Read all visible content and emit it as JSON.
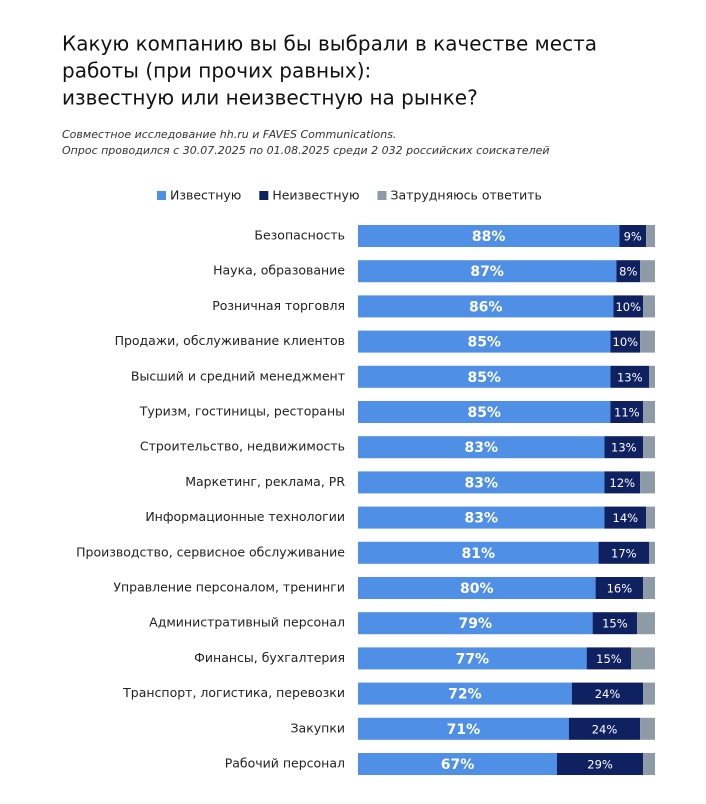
{
  "chart_data": {
    "type": "stacked-barh",
    "title": [
      "Какую компанию вы бы выбрали в качестве места",
      "работы (при прочих равных):",
      "известную или неизвестную на рынке?"
    ],
    "subtitle": [
      "Совместное исследование hh.ru и FAVES Communications.",
      "Опрос проводился с 30.07.2025 по 01.08.2025 среди 2 032 российских соискателей"
    ],
    "categories": [
      "Безопасность",
      "Наука, образование",
      "Розничная торговля",
      "Продажи, обслуживание клиентов",
      "Высший и средний менеджмент",
      "Туризм, гостиницы, рестораны",
      "Строительство, недвижимость",
      "Маркетинг, реклама, PR",
      "Информационные технологии",
      "Производство, сервисное обслуживание",
      "Управление персоналом, тренинги",
      "Административный персонал",
      "Финансы, бухгалтерия",
      "Транспорт, логистика, перевозки",
      "Закупки",
      "Рабочий персонал"
    ],
    "xlim": [
      0,
      100
    ],
    "legend": "top",
    "series": [
      {
        "name": "Известную",
        "color": "#4f8fe6",
        "values": [
          88,
          87,
          86,
          85,
          85,
          85,
          83,
          83,
          83,
          81,
          80,
          79,
          77,
          72,
          71,
          67
        ],
        "value_labels": [
          "88%",
          "87%",
          "86%",
          "85%",
          "85%",
          "85%",
          "83%",
          "83%",
          "83%",
          "81%",
          "80%",
          "79%",
          "77%",
          "72%",
          "71%",
          "67%"
        ]
      },
      {
        "name": "Неизвестную",
        "color": "#0f2160",
        "values": [
          9,
          8,
          10,
          10,
          13,
          11,
          13,
          12,
          14,
          17,
          16,
          15,
          15,
          24,
          24,
          29
        ],
        "value_labels": [
          "9%",
          "8%",
          "10%",
          "10%",
          "13%",
          "11%",
          "13%",
          "12%",
          "14%",
          "17%",
          "16%",
          "15%",
          "15%",
          "24%",
          "24%",
          "29%"
        ]
      },
      {
        "name": "Затрудняюсь ответить",
        "color": "#8e9aa6",
        "values": [
          3,
          5,
          4,
          5,
          2,
          4,
          4,
          5,
          3,
          2,
          4,
          6,
          8,
          4,
          5,
          4
        ]
      }
    ]
  }
}
